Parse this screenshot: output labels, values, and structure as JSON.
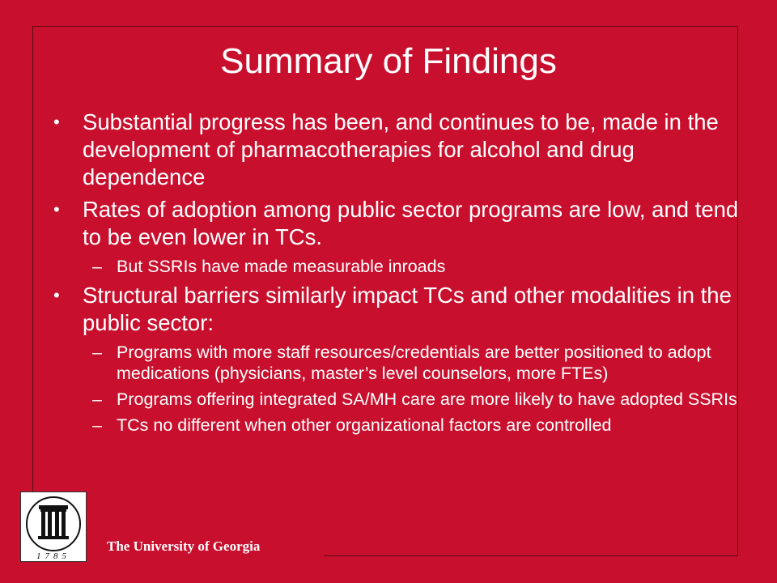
{
  "slide": {
    "title": "Summary of Findings",
    "bullets": [
      {
        "text": "Substantial progress has been, and continues to be, made in the development of pharmacotherapies for alcohol and drug dependence",
        "subs": []
      },
      {
        "text": "Rates of adoption among public sector programs are low, and tend to be even lower in TCs.",
        "subs": [
          "But SSRIs have made measurable inroads"
        ]
      },
      {
        "text": "Structural barriers similarly impact TCs and other modalities in the public sector:",
        "subs": [
          "Programs with more staff resources/credentials are better positioned to adopt medications (physicians, master’s level counselors, more FTEs)",
          "Programs offering integrated SA/MH care are more likely to have adopted SSRIs",
          "TCs no different when other organizational factors are controlled"
        ]
      }
    ]
  },
  "footer": {
    "university": "The University of Georgia",
    "logo_year": "1785",
    "logo_icon": "arch-columns-icon"
  },
  "colors": {
    "background": "#c8102e",
    "text": "#ffffff"
  }
}
